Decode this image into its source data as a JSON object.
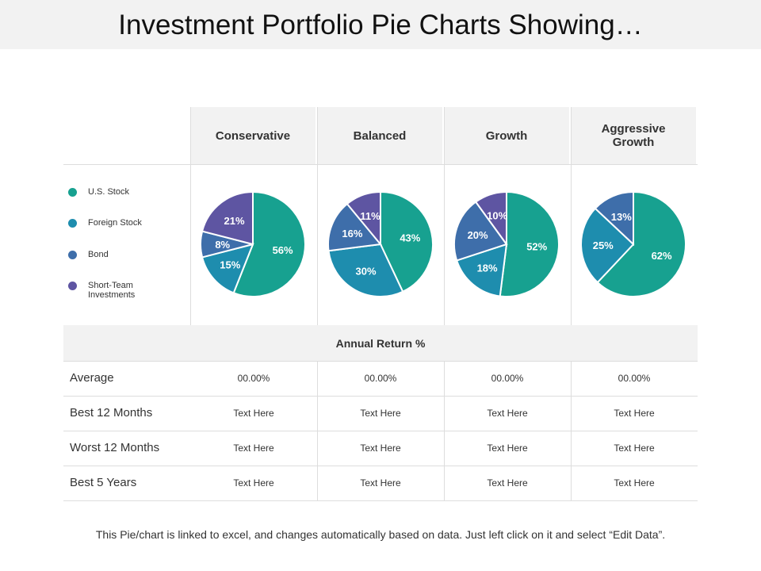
{
  "title": "Investment Portfolio Pie Charts Showing…",
  "footer": "This Pie/chart is linked to excel, and changes automatically based on data. Just left click on it and select “Edit Data”.",
  "legend": [
    {
      "label": "U.S. Stock",
      "color": "#17A190"
    },
    {
      "label": "Foreign Stock",
      "color": "#1E8DAE"
    },
    {
      "label": "Bond",
      "color": "#3E6EAA"
    },
    {
      "label": "Short-Team Investments",
      "color": "#5E55A2"
    }
  ],
  "chart_data": [
    {
      "type": "pie",
      "title": "Conservative",
      "labels": [
        "U.S. Stock",
        "Foreign Stock",
        "Bond",
        "Short-Team Investments"
      ],
      "values": [
        56,
        15,
        8,
        21
      ]
    },
    {
      "type": "pie",
      "title": "Balanced",
      "labels": [
        "U.S. Stock",
        "Foreign Stock",
        "Bond",
        "Short-Team Investments"
      ],
      "values": [
        43,
        30,
        16,
        11
      ]
    },
    {
      "type": "pie",
      "title": "Growth",
      "labels": [
        "U.S. Stock",
        "Foreign Stock",
        "Bond",
        "Short-Team Investments"
      ],
      "values": [
        52,
        18,
        20,
        10
      ]
    },
    {
      "type": "pie",
      "title": "Aggressive Growth",
      "labels": [
        "U.S. Stock",
        "Foreign Stock",
        "Bond"
      ],
      "values": [
        62,
        25,
        13
      ]
    }
  ],
  "table": {
    "section_title": "Annual Return %",
    "rows": [
      {
        "label": "Average",
        "values": [
          "00.00%",
          "00.00%",
          "00.00%",
          "00.00%"
        ]
      },
      {
        "label": "Best 12 Months",
        "values": [
          "Text Here",
          "Text Here",
          "Text Here",
          "Text Here"
        ]
      },
      {
        "label": "Worst 12 Months",
        "values": [
          "Text Here",
          "Text Here",
          "Text Here",
          "Text Here"
        ]
      },
      {
        "label": "Best 5 Years",
        "values": [
          "Text Here",
          "Text Here",
          "Text Here",
          "Text Here"
        ]
      }
    ]
  }
}
